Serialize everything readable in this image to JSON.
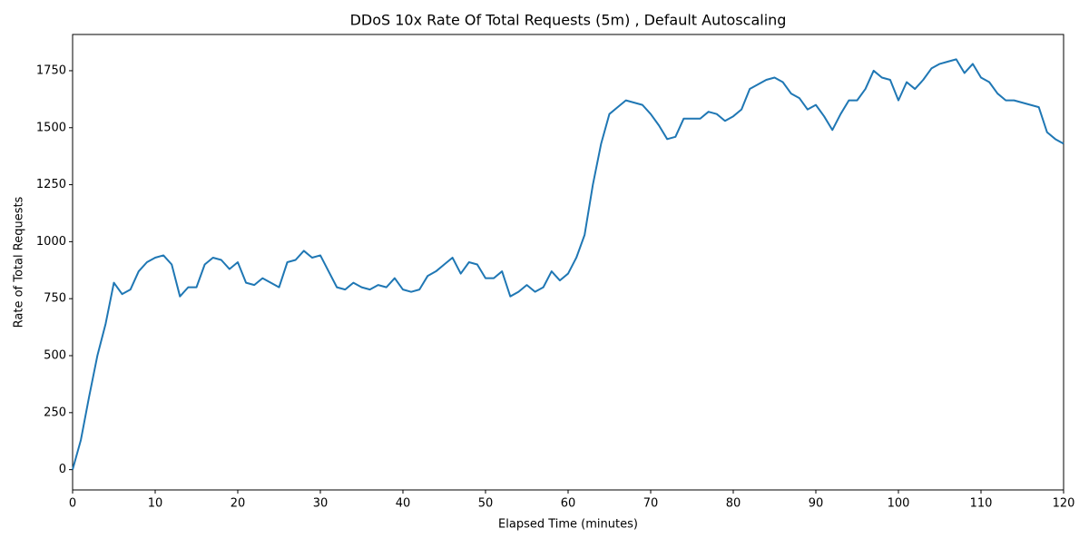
{
  "chart_data": {
    "type": "line",
    "title": "DDoS 10x Rate Of Total Requests (5m) , Default Autoscaling",
    "x_label": "Elapsed Time (minutes)",
    "y_label": "Rate of Total Requests",
    "x": [
      0,
      1,
      2,
      3,
      4,
      5,
      6,
      7,
      8,
      9,
      10,
      11,
      12,
      13,
      14,
      15,
      16,
      17,
      18,
      19,
      20,
      21,
      22,
      23,
      24,
      25,
      26,
      27,
      28,
      29,
      30,
      31,
      32,
      33,
      34,
      35,
      36,
      37,
      38,
      39,
      40,
      41,
      42,
      43,
      44,
      45,
      46,
      47,
      48,
      49,
      50,
      51,
      52,
      53,
      54,
      55,
      56,
      57,
      58,
      59,
      60,
      61,
      62,
      63,
      64,
      65,
      66,
      67,
      68,
      69,
      70,
      71,
      72,
      73,
      74,
      75,
      76,
      77,
      78,
      79,
      80,
      81,
      82,
      83,
      84,
      85,
      86,
      87,
      88,
      89,
      90,
      91,
      92,
      93,
      94,
      95,
      96,
      97,
      98,
      99,
      100,
      101,
      102,
      103,
      104,
      105,
      106,
      107,
      108,
      109,
      110,
      111,
      112,
      113,
      114,
      115,
      116,
      117,
      118,
      119,
      120
    ],
    "series": [
      {
        "color": "#1f77b4",
        "values": [
          0,
          130,
          320,
          500,
          640,
          820,
          770,
          790,
          870,
          910,
          930,
          940,
          900,
          760,
          800,
          800,
          900,
          930,
          920,
          880,
          910,
          820,
          810,
          840,
          820,
          800,
          910,
          920,
          960,
          930,
          940,
          870,
          800,
          790,
          820,
          800,
          790,
          810,
          800,
          840,
          790,
          780,
          790,
          850,
          870,
          900,
          930,
          860,
          910,
          900,
          840,
          840,
          870,
          760,
          780,
          810,
          780,
          800,
          870,
          830,
          860,
          930,
          1030,
          1250,
          1430,
          1560,
          1590,
          1620,
          1610,
          1600,
          1560,
          1510,
          1450,
          1460,
          1540,
          1540,
          1540,
          1570,
          1560,
          1530,
          1550,
          1580,
          1670,
          1690,
          1710,
          1720,
          1700,
          1650,
          1630,
          1580,
          1600,
          1550,
          1490,
          1560,
          1620,
          1620,
          1670,
          1750,
          1720,
          1710,
          1620,
          1700,
          1670,
          1710,
          1760,
          1780,
          1790,
          1800,
          1740,
          1780,
          1720,
          1700,
          1650,
          1620,
          1620,
          1610,
          1600,
          1590,
          1480,
          1450,
          1430
        ]
      }
    ],
    "xlim": [
      0,
      120
    ],
    "xticks": [
      0,
      10,
      20,
      30,
      40,
      50,
      60,
      70,
      80,
      90,
      100,
      110,
      120
    ],
    "ylim": [
      -89,
      1909
    ],
    "yticks": [
      0,
      250,
      500,
      750,
      1000,
      1250,
      1500,
      1750
    ]
  }
}
